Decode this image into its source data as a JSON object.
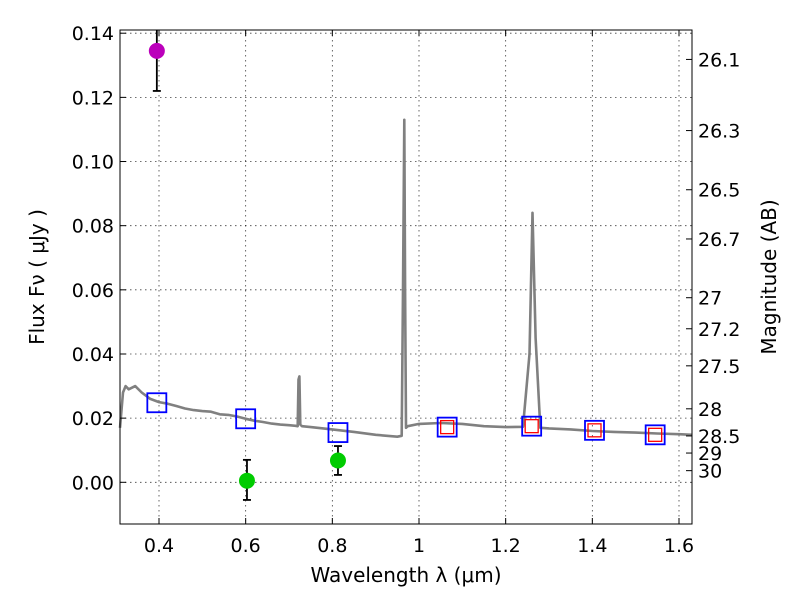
{
  "chart_data": {
    "type": "scatter",
    "title": "",
    "xlabel": "Wavelength  λ (μm)",
    "ylabel": "Flux  Fν  ( μJy )",
    "y2label": "Magnitude (AB)",
    "xlim": [
      0.31,
      1.63
    ],
    "ylim": [
      -0.013,
      0.141
    ],
    "grid": true,
    "x_ticks": [
      {
        "value": 0.4,
        "label": "0.4"
      },
      {
        "value": 0.6,
        "label": "0.6"
      },
      {
        "value": 0.8,
        "label": "0.8"
      },
      {
        "value": 1.0,
        "label": "1"
      },
      {
        "value": 1.2,
        "label": "1.2"
      },
      {
        "value": 1.4,
        "label": "1.4"
      },
      {
        "value": 1.6,
        "label": "1.6"
      }
    ],
    "y_ticks": [
      {
        "value": 0.0,
        "label": "0.00"
      },
      {
        "value": 0.02,
        "label": "0.02"
      },
      {
        "value": 0.04,
        "label": "0.04"
      },
      {
        "value": 0.06,
        "label": "0.06"
      },
      {
        "value": 0.08,
        "label": "0.08"
      },
      {
        "value": 0.1,
        "label": "0.10"
      },
      {
        "value": 0.12,
        "label": "0.12"
      },
      {
        "value": 0.14,
        "label": "0.14"
      }
    ],
    "magnitude_ticks": [
      {
        "mag": 26.1,
        "label": "26.1"
      },
      {
        "mag": 26.3,
        "label": "26.3"
      },
      {
        "mag": 26.5,
        "label": "26.5"
      },
      {
        "mag": 26.7,
        "label": "26.7"
      },
      {
        "mag": 27.0,
        "label": "27"
      },
      {
        "mag": 27.2,
        "label": "27.2"
      },
      {
        "mag": 27.5,
        "label": "27.5"
      },
      {
        "mag": 28.0,
        "label": "28"
      },
      {
        "mag": 28.5,
        "label": "28.5"
      },
      {
        "mag": 29.0,
        "label": "29"
      },
      {
        "mag": 30.0,
        "label": "30"
      }
    ],
    "series": [
      {
        "name": "model_spectrum",
        "type": "line",
        "color": "#808080",
        "x": [
          0.31,
          0.317,
          0.323,
          0.33,
          0.345,
          0.36,
          0.38,
          0.4,
          0.42,
          0.44,
          0.46,
          0.48,
          0.5,
          0.52,
          0.54,
          0.56,
          0.58,
          0.6,
          0.62,
          0.64,
          0.66,
          0.68,
          0.7,
          0.715,
          0.72,
          0.722,
          0.724,
          0.726,
          0.73,
          0.75,
          0.8,
          0.85,
          0.9,
          0.95,
          0.96,
          0.963,
          0.966,
          0.968,
          0.97,
          0.974,
          1.0,
          1.05,
          1.1,
          1.15,
          1.2,
          1.24,
          1.255,
          1.262,
          1.269,
          1.28,
          1.3,
          1.35,
          1.4,
          1.45,
          1.5,
          1.55,
          1.6,
          1.63
        ],
        "y": [
          0.017,
          0.028,
          0.03,
          0.029,
          0.03,
          0.028,
          0.026,
          0.025,
          0.0245,
          0.0238,
          0.023,
          0.0225,
          0.0222,
          0.022,
          0.0212,
          0.021,
          0.0205,
          0.0198,
          0.0192,
          0.0188,
          0.0183,
          0.018,
          0.0178,
          0.0176,
          0.0175,
          0.032,
          0.033,
          0.018,
          0.0175,
          0.0172,
          0.0165,
          0.0157,
          0.0148,
          0.0142,
          0.0145,
          0.06,
          0.113,
          0.06,
          0.017,
          0.0175,
          0.0182,
          0.0185,
          0.0182,
          0.0175,
          0.0172,
          0.0173,
          0.04,
          0.084,
          0.045,
          0.017,
          0.0168,
          0.0165,
          0.016,
          0.0157,
          0.0155,
          0.0152,
          0.015,
          0.0148
        ]
      },
      {
        "name": "model_photometry_blue",
        "type": "scatter",
        "marker": "square",
        "color": "#0000ff",
        "x": [
          0.395,
          0.6,
          0.813,
          1.065,
          1.26,
          1.405,
          1.545
        ],
        "y": [
          0.0248,
          0.0198,
          0.0155,
          0.0172,
          0.0175,
          0.0162,
          0.0148
        ]
      },
      {
        "name": "model_photometry_red",
        "type": "scatter",
        "marker": "square",
        "color": "#ff0000",
        "x": [
          1.065,
          1.26,
          1.405,
          1.545
        ],
        "y": [
          0.0172,
          0.0175,
          0.0162,
          0.0148
        ]
      },
      {
        "name": "observed_magenta",
        "type": "scatter",
        "marker": "circle",
        "color": "#bb00bb",
        "x": [
          0.395
        ],
        "y": [
          0.1345
        ],
        "yerr_low": [
          0.0125
        ],
        "yerr_high": [
          0.0065
        ]
      },
      {
        "name": "observed_green",
        "type": "scatter",
        "marker": "circle",
        "color": "#00cc00",
        "x": [
          0.603,
          0.813
        ],
        "y": [
          0.0005,
          0.0068
        ],
        "yerr_low": [
          0.006,
          0.0045
        ],
        "yerr_high": [
          0.0065,
          0.0045
        ]
      }
    ]
  }
}
